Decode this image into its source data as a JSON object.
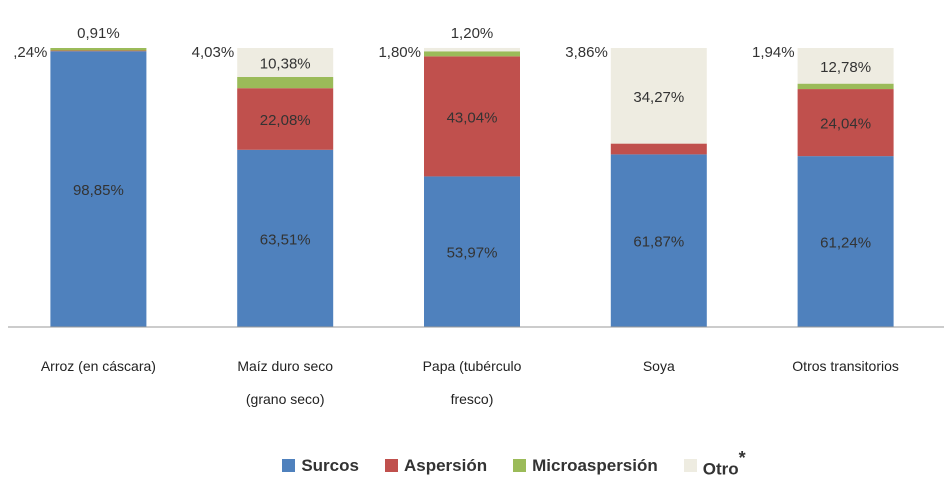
{
  "chart_data": {
    "type": "stacked_bar_100",
    "categories": [
      "Arroz (en cáscara)",
      "Maíz duro seco (grano seco)",
      "Papa (tubérculo fresco)",
      "Soya",
      "Otros transitorios"
    ],
    "ylim": [
      0,
      100
    ],
    "series": [
      {
        "name": "Surcos",
        "color": "#4f81bd",
        "values": [
          98.85,
          63.51,
          53.97,
          61.87,
          61.24
        ],
        "value_labels": [
          "98,85%",
          "63,51%",
          "53,97%",
          "61,87%",
          "61,24%"
        ]
      },
      {
        "name": "Aspersión",
        "color": "#c0504d",
        "values": [
          0.24,
          22.08,
          43.04,
          3.86,
          24.04
        ],
        "value_labels": [
          ",24%",
          "22,08%",
          "43,04%",
          "3,86%",
          "24,04%"
        ]
      },
      {
        "name": "Microaspersión",
        "color": "#9bbb59",
        "values": [
          0.91,
          4.03,
          1.8,
          null,
          1.94
        ],
        "value_labels": [
          "0,91%",
          "4,03%",
          "1,80%",
          null,
          "1,94%"
        ]
      },
      {
        "name": "Otro",
        "color": "#eeece1",
        "values": [
          null,
          10.38,
          1.2,
          34.27,
          12.78
        ],
        "value_labels": [
          null,
          "10,38%",
          "1,20%",
          "34,27%",
          "12,78%"
        ]
      }
    ],
    "legend_footnote_mark": "*",
    "legend": "bottom"
  }
}
